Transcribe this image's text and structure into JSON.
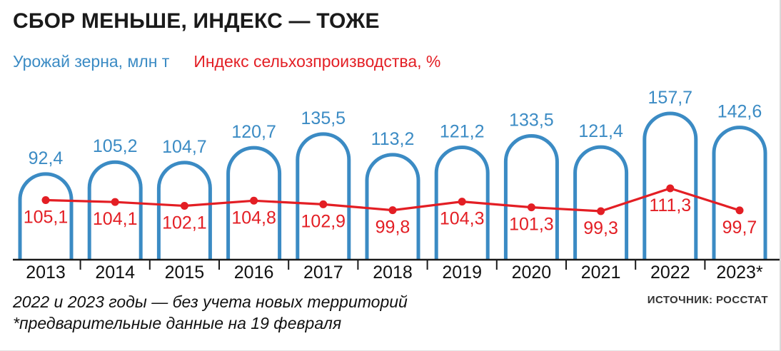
{
  "title": "СБОР МЕНЬШЕ, ИНДЕКС — ТОЖЕ",
  "legend": {
    "blue": "Урожай зерна, млн т",
    "red": "Индекс сельхозпроизводства, %"
  },
  "chart_data": {
    "type": "bar",
    "variant": "outlined-arch-bars-with-overlaid-line",
    "categories": [
      "2013",
      "2014",
      "2015",
      "2016",
      "2017",
      "2018",
      "2019",
      "2020",
      "2021",
      "2022",
      "2023*"
    ],
    "series": [
      {
        "name": "Урожай зерна, млн т",
        "type": "bar",
        "color": "#3b8bc4",
        "values": [
          92.4,
          105.2,
          104.7,
          120.7,
          135.5,
          113.2,
          121.2,
          133.5,
          121.4,
          157.7,
          142.6
        ],
        "labels": [
          "92,4",
          "105,2",
          "104,7",
          "120,7",
          "135,5",
          "113,2",
          "121,2",
          "133,5",
          "121,4",
          "157,7",
          "142,6"
        ]
      },
      {
        "name": "Индекс сельхозпроизводства, %",
        "type": "line",
        "color": "#e31e24",
        "values": [
          105.1,
          104.1,
          102.1,
          104.8,
          102.9,
          99.8,
          104.3,
          101.3,
          99.3,
          111.3,
          99.7
        ],
        "labels": [
          "105,1",
          "104,1",
          "102,1",
          "104,8",
          "102,9",
          "99,8",
          "104,3",
          "101,3",
          "99,3",
          "111,3",
          "99,7"
        ]
      }
    ],
    "ylim_bars": [
      0,
      170
    ],
    "grid": false,
    "legend_position": "top-left",
    "value_labels_shown": true
  },
  "footnotes": [
    "2022 и 2023 годы — без учета новых территорий",
    "*предварительные данные на 19 февраля"
  ],
  "source": "ИСТОЧНИК: РОССТАТ"
}
